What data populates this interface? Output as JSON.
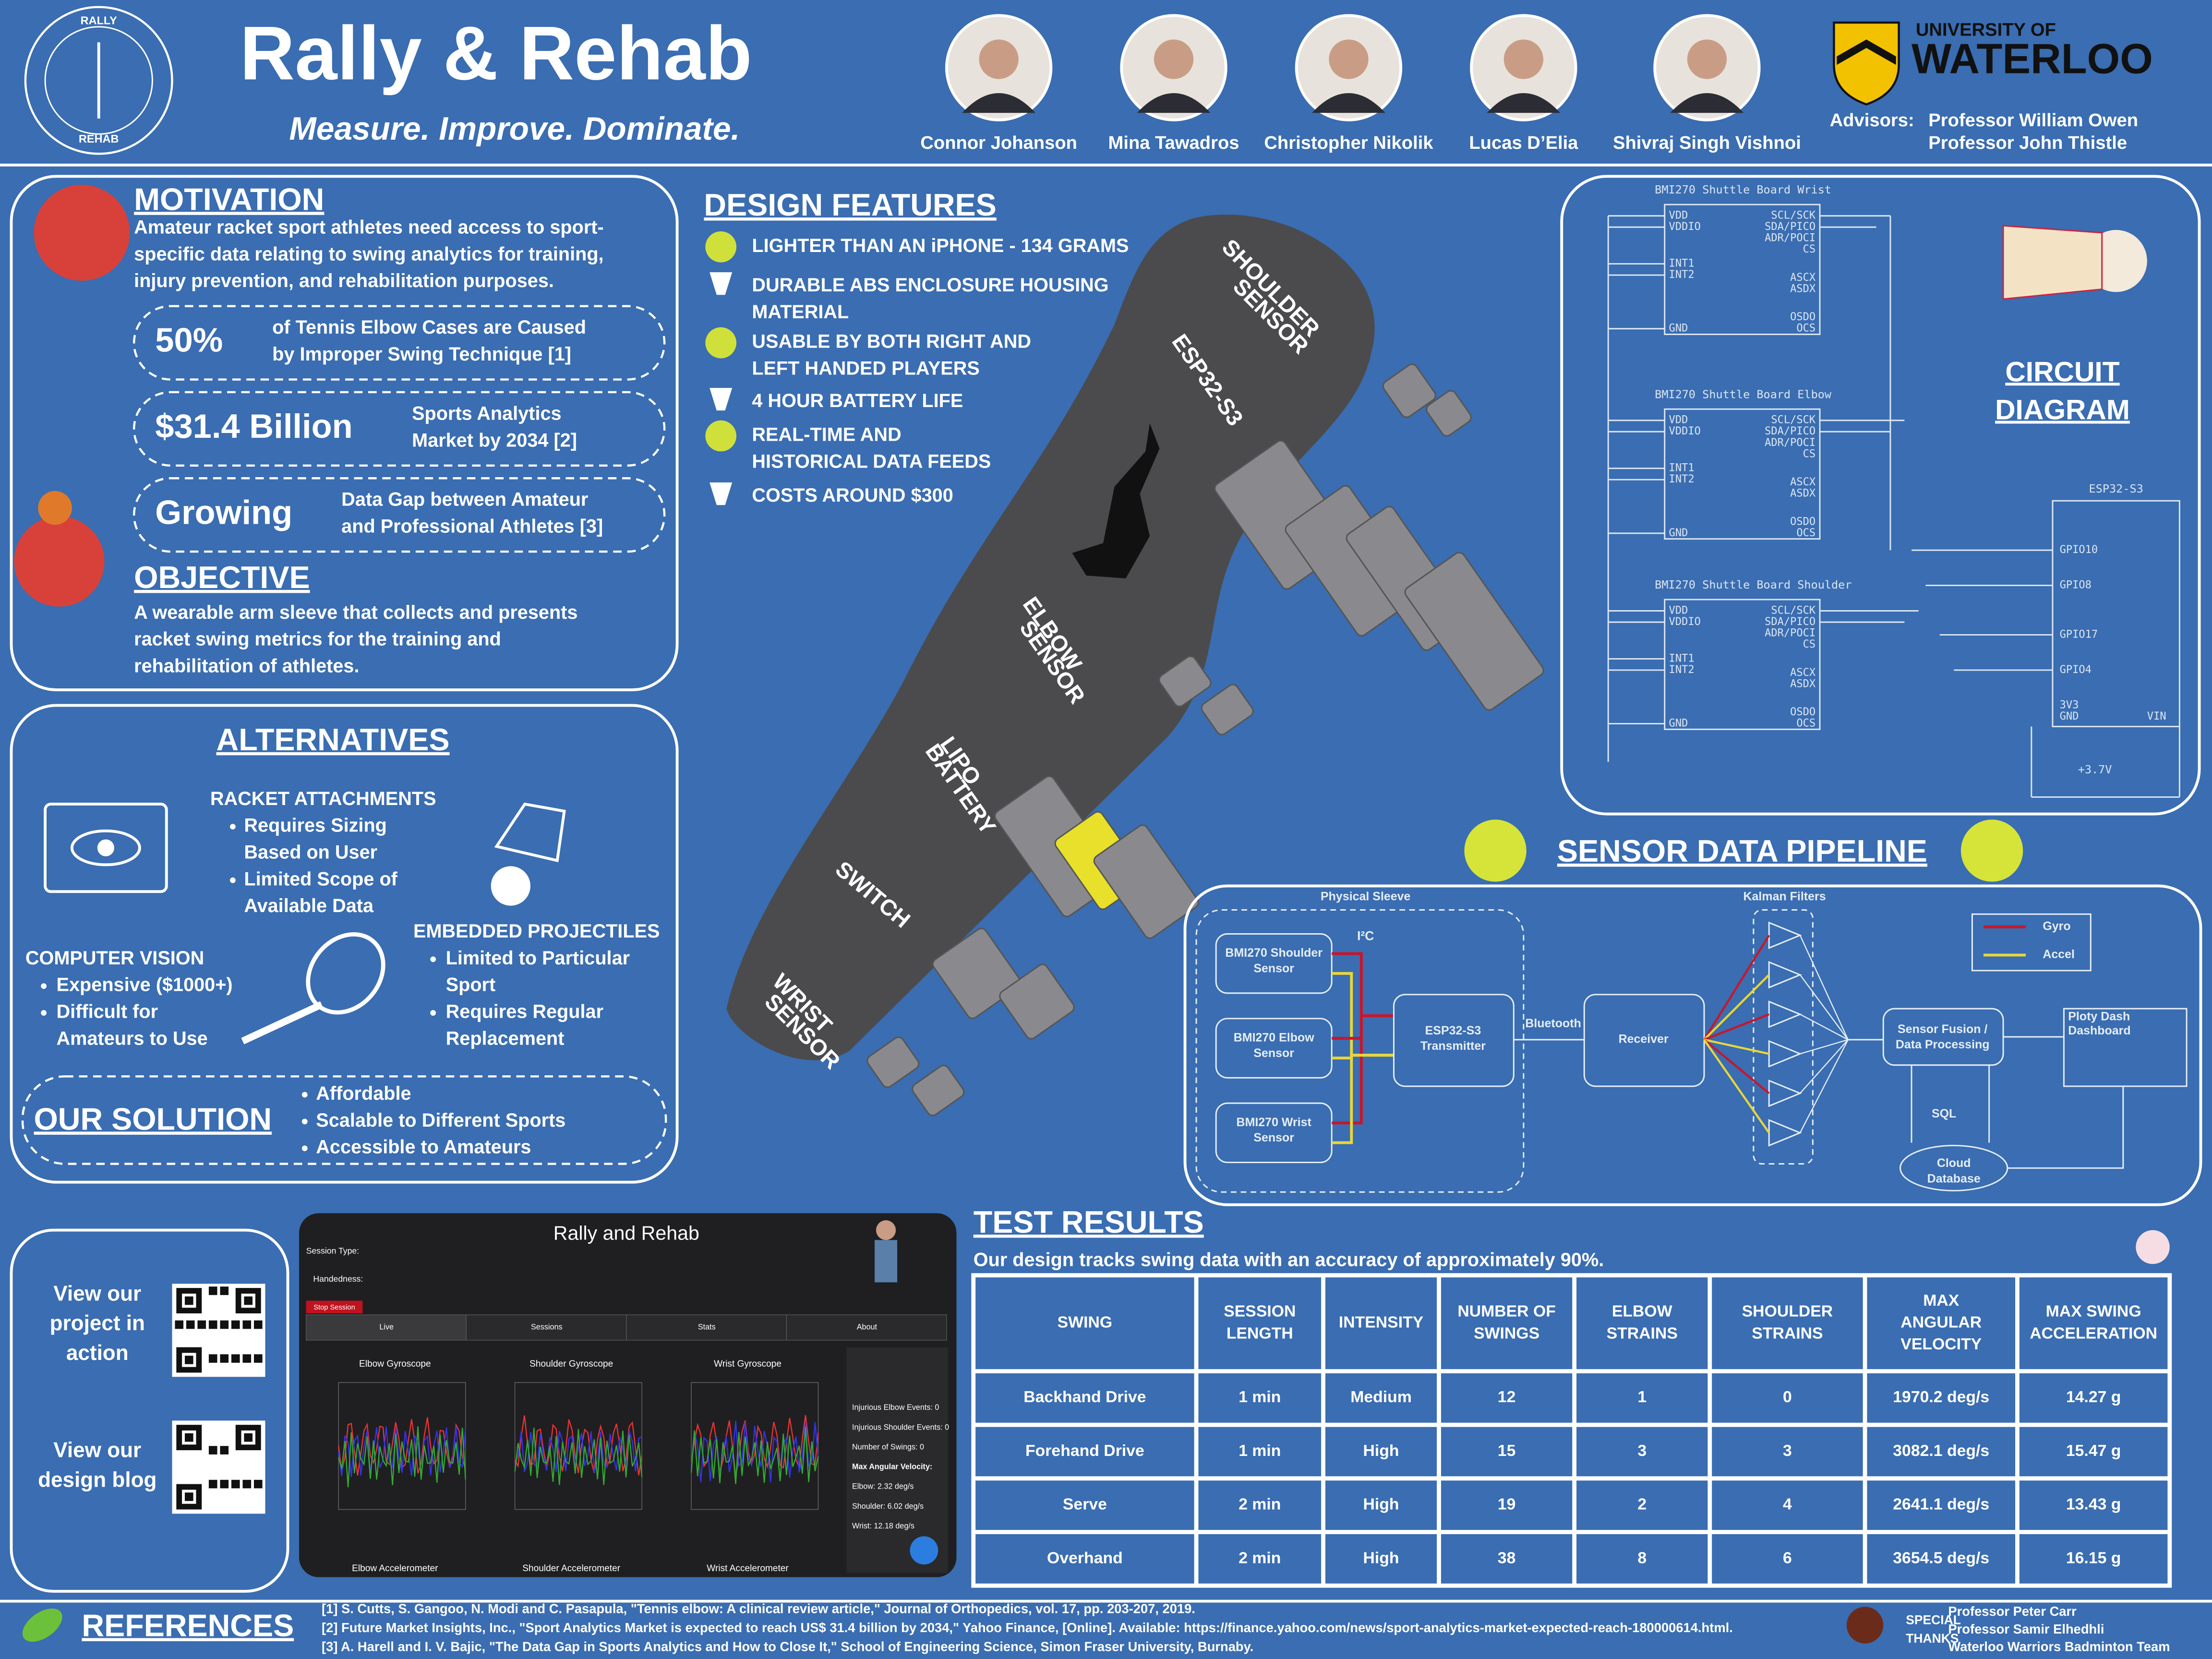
{
  "header": {
    "logo_top": "RALLY",
    "logo_bottom": "REHAB",
    "title": "Rally & Rehab",
    "tagline": "Measure. Improve. Dominate.",
    "team": [
      "Connor Johanson",
      "Mina Tawadros",
      "Christopher Nikolik",
      "Lucas D’Elia",
      "Shivraj Singh Vishnoi"
    ],
    "university": [
      "UNIVERSITY OF",
      "WATERLOO"
    ],
    "advisors_label": "Advisors:",
    "advisors": [
      "Professor William Owen",
      "Professor John Thistle"
    ]
  },
  "motivation": {
    "heading": "MOTIVATION",
    "text": [
      "Amateur racket sport athletes need access to sport-",
      "specific data relating to swing analytics for training,",
      "injury prevention, and rehabilitation purposes."
    ],
    "stats": [
      {
        "value": "50%",
        "label": [
          "of Tennis Elbow Cases are Caused",
          "by Improper Swing Technique [1]"
        ]
      },
      {
        "value": "$31.4 Billion",
        "label": [
          "Sports Analytics",
          "Market by 2034 [2]"
        ]
      },
      {
        "value": "Growing",
        "label": [
          "Data Gap between Amateur",
          "and Professional Athletes [3]"
        ]
      }
    ],
    "objective_heading": "OBJECTIVE",
    "objective": [
      "A wearable arm sleeve that collects and presents",
      "racket swing metrics for the training and",
      "rehabilitation of athletes."
    ]
  },
  "design": {
    "heading": "DESIGN FEATURES",
    "features": [
      [
        "LIGHTER THAN AN iPHONE - 134 GRAMS"
      ],
      [
        "DURABLE ABS ENCLOSURE HOUSING",
        "MATERIAL"
      ],
      [
        "USABLE BY BOTH RIGHT AND",
        "LEFT HANDED PLAYERS"
      ],
      [
        "4 HOUR BATTERY LIFE"
      ],
      [
        "REAL-TIME AND",
        "HISTORICAL DATA FEEDS"
      ],
      [
        "COSTS AROUND $300"
      ]
    ],
    "sleeve_labels": [
      [
        "SHOULDER",
        "SENSOR"
      ],
      [
        "ESP32-S3"
      ],
      [
        "ELBOW",
        "SENSOR"
      ],
      [
        "LIPO",
        "BATTERY"
      ],
      [
        "SWITCH"
      ],
      [
        "WRIST",
        "SENSOR"
      ]
    ]
  },
  "circuit": {
    "heading": [
      "CIRCUIT",
      "DIAGRAM"
    ],
    "boards": [
      "BMI270 Shuttle Board Wrist",
      "BMI270 Shuttle Board Elbow",
      "BMI270 Shuttle Board Shoulder"
    ],
    "pins_left": [
      "VDD",
      "VDDIO",
      "INT1",
      "INT2",
      "GND"
    ],
    "pins_right": [
      "SCL/SCK",
      "SDA/PICO",
      "ADR/POCI",
      "CS",
      "ASCX",
      "ASDX",
      "OSDO",
      "OCS"
    ],
    "mcu": "ESP32-S3",
    "mcu_pins": [
      "GPIO10",
      "GPIO8",
      "GPIO17",
      "GPIO4",
      "3V3",
      "GND",
      "VIN"
    ],
    "battery": "+3.7V"
  },
  "alternatives": {
    "heading": "ALTERNATIVES",
    "groups": [
      {
        "title": "RACKET ATTACHMENTS",
        "items": [
          [
            "Requires Sizing",
            "Based on User"
          ],
          [
            "Limited Scope of",
            "Available Data"
          ]
        ]
      },
      {
        "title": "COMPUTER VISION",
        "items": [
          [
            "Expensive ($1000+)"
          ],
          [
            "Difficult for",
            "Amateurs to Use"
          ]
        ]
      },
      {
        "title": "EMBEDDED PROJECTILES",
        "items": [
          [
            "Limited to Particular",
            "Sport"
          ],
          [
            "Requires Regular",
            "Replacement"
          ]
        ]
      }
    ],
    "solution_heading": "OUR SOLUTION",
    "solution": [
      "Affordable",
      "Scalable to Different Sports",
      "Accessible to Amateurs"
    ]
  },
  "pipeline": {
    "heading": "SENSOR DATA PIPELINE",
    "group_label": "Physical Sleeve",
    "sensors": [
      [
        "BMI270 Shoulder",
        "Sensor"
      ],
      [
        "BMI270 Elbow",
        "Sensor"
      ],
      [
        "BMI270 Wrist",
        "Sensor"
      ]
    ],
    "bus": "I²C",
    "transmitter": [
      "ESP32-S3",
      "Transmitter"
    ],
    "link": "Bluetooth",
    "receiver": "Receiver",
    "filters": "Kalman Filters",
    "fusion": [
      "Sensor Fusion /",
      "Data Processing"
    ],
    "sql": "SQL",
    "database": [
      "Cloud",
      "Database"
    ],
    "dashboard": [
      "Ploty Dash",
      "Dashboard"
    ],
    "legend": [
      "Gyro",
      "Accel"
    ]
  },
  "links": [
    [
      "View our",
      "project in",
      "action"
    ],
    [
      "View our",
      "design blog"
    ]
  ],
  "app": {
    "title": "Rally and Rehab",
    "controls": [
      "Session Type:",
      "Handedness:",
      "Stop Session"
    ],
    "tabs": [
      "Live",
      "Sessions",
      "Stats",
      "About"
    ],
    "plots": [
      "Elbow Gyroscope",
      "Shoulder Gyroscope",
      "Wrist Gyroscope"
    ],
    "bottom": [
      "Elbow Accelerometer",
      "Shoulder Accelerometer",
      "Wrist Accelerometer"
    ],
    "stats": [
      "Injurious Elbow Events: 0",
      "Injurious Shoulder Events: 0",
      "Number of Swings: 0",
      "Max Angular Velocity:",
      "Elbow: 2.32 deg/s",
      "Shoulder: 6.02 deg/s",
      "Wrist: 12.18 deg/s"
    ]
  },
  "results": {
    "heading": "TEST RESULTS",
    "subtitle": "Our design tracks swing data with an accuracy of approximately 90%.",
    "columns": [
      [
        "SWING"
      ],
      [
        "SESSION",
        "LENGTH"
      ],
      [
        "INTENSITY"
      ],
      [
        "NUMBER OF",
        "SWINGS"
      ],
      [
        "ELBOW",
        "STRAINS"
      ],
      [
        "SHOULDER",
        "STRAINS"
      ],
      [
        "MAX",
        "ANGULAR",
        "VELOCITY"
      ],
      [
        "MAX SWING",
        "ACCELERATION"
      ]
    ],
    "rows": [
      [
        "Backhand Drive",
        "1 min",
        "Medium",
        12,
        1,
        0,
        "1970.2 deg/s",
        "14.27 g"
      ],
      [
        "Forehand Drive",
        "1 min",
        "High",
        15,
        3,
        3,
        "3082.1 deg/s",
        "15.47 g"
      ],
      [
        "Serve",
        "2 min",
        "High",
        19,
        2,
        4,
        "2641.1 deg/s",
        "13.43 g"
      ],
      [
        "Overhand",
        "2 min",
        "High",
        38,
        8,
        6,
        "3654.5 deg/s",
        "16.15 g"
      ]
    ]
  },
  "references": {
    "heading": "REFERENCES",
    "items": [
      "[1] S. Cutts, S. Gangoo, N. Modi and C. Pasapula, \"Tennis elbow: A clinical review article,\" Journal of Orthopedics, vol. 17, pp. 203-207, 2019.",
      "[2] Future Market Insights, Inc., \"Sport Analytics Market is expected to reach US$ 31.4 billion by 2034,\" Yahoo Finance, [Online]. Available: https://finance.yahoo.com/news/sport-analytics-market-expected-reach-180000614.html.",
      "[3] A. Harell and I. V. Bajic, \"The Data Gap in Sports Analytics and How to Close It,\" School of Engineering Science, Simon Fraser University, Burnaby."
    ],
    "thanks_label": [
      "SPECIAL",
      "THANKS"
    ],
    "thanks": [
      "Professor Peter Carr",
      "Professor Samir Elhedhli",
      "Waterloo Warriors Badminton Team"
    ]
  }
}
